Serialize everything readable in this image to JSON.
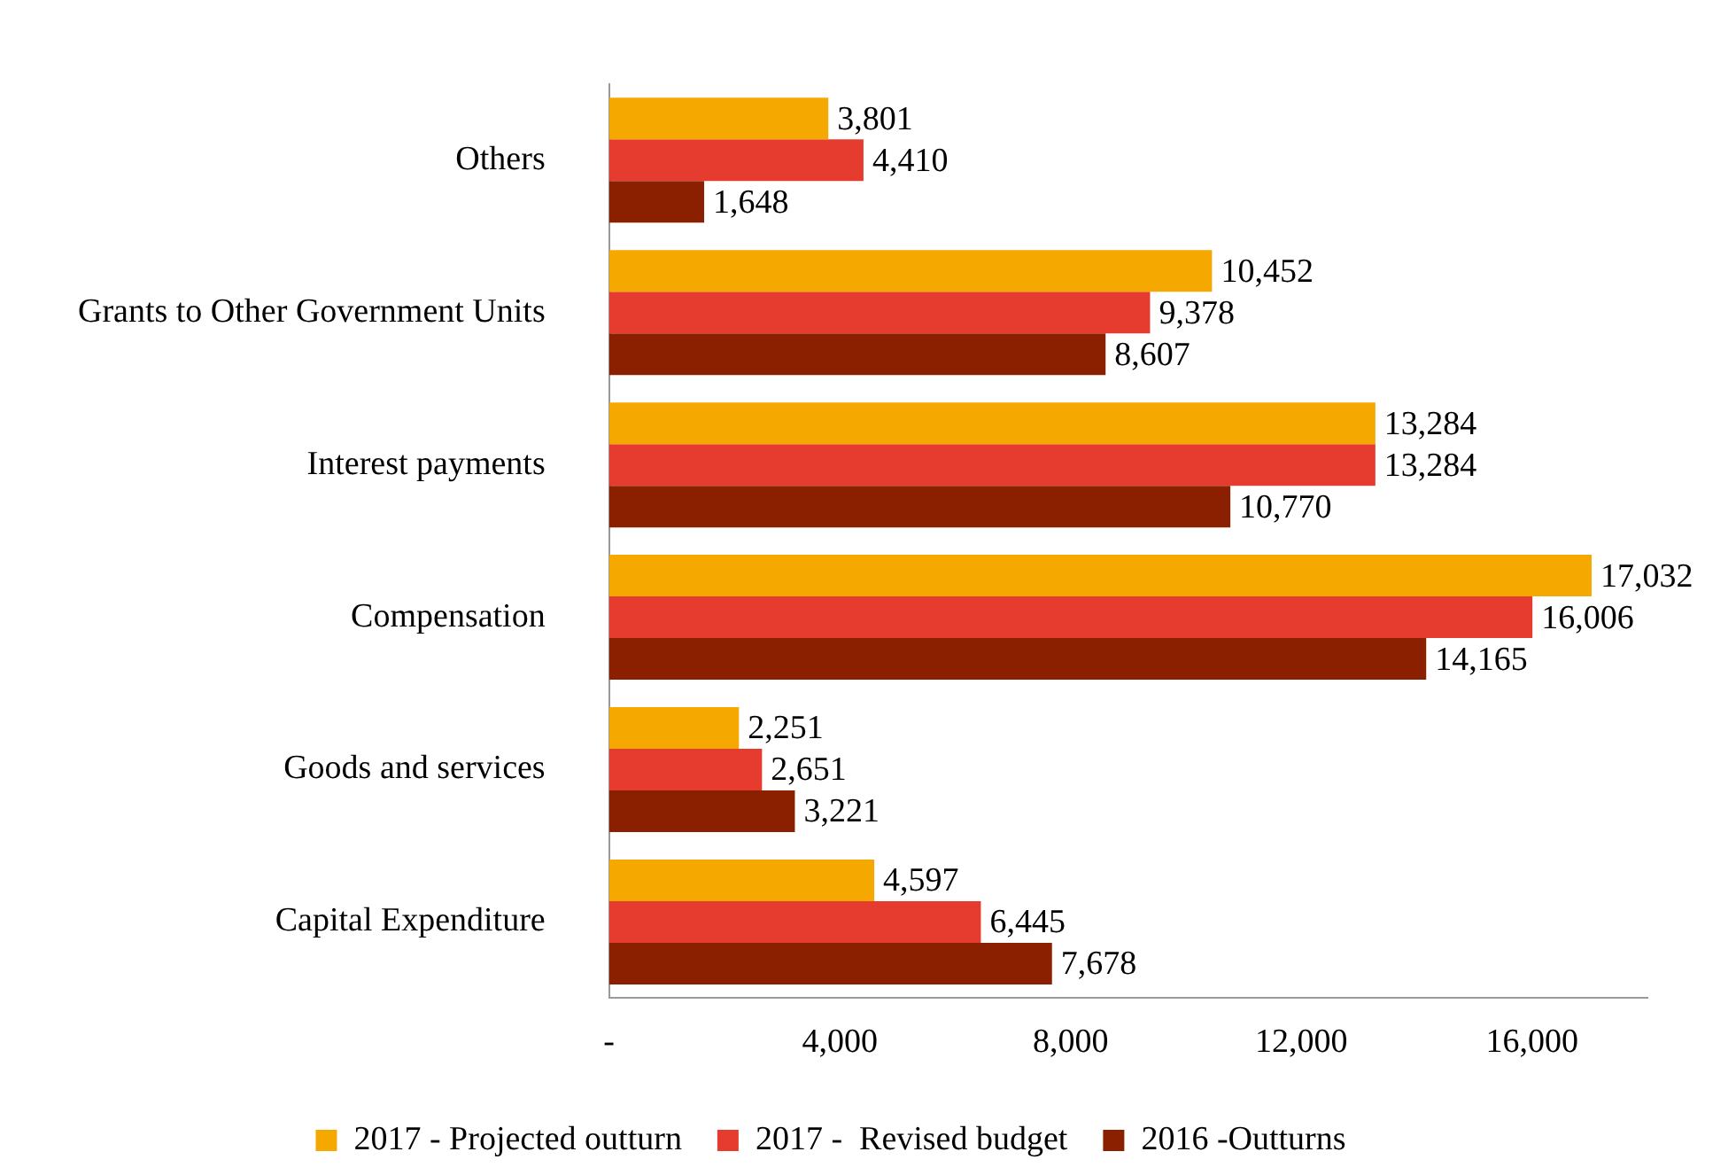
{
  "chart_data": {
    "type": "bar",
    "orientation": "horizontal",
    "categories": [
      "Others",
      "Grants to Other Government Units",
      "Interest payments",
      "Compensation",
      "Goods and services",
      "Capital Expenditure"
    ],
    "series": [
      {
        "name": "2017 - Projected outturn",
        "color": "#f5a800",
        "values": [
          3801,
          10452,
          13284,
          17032,
          2251,
          4597
        ],
        "value_labels": [
          "3,801",
          "10,452",
          "13,284",
          "17,032",
          "2,251",
          "4,597"
        ]
      },
      {
        "name": "2017 -  Revised budget",
        "color": "#e63c2f",
        "values": [
          4410,
          9378,
          13284,
          16006,
          2651,
          6445
        ],
        "value_labels": [
          "4,410",
          "9,378",
          "13,284",
          "16,006",
          "2,651",
          "6,445"
        ]
      },
      {
        "name": "2016 -Outturns",
        "color": "#8b2000",
        "values": [
          1648,
          8607,
          10770,
          14165,
          3221,
          7678
        ],
        "value_labels": [
          "1,648",
          "8,607",
          "10,770",
          "14,165",
          "3,221",
          "7,678"
        ]
      }
    ],
    "xlim": [
      0,
      18000
    ],
    "xticks": [
      {
        "value": 0,
        "label": "-"
      },
      {
        "value": 4000,
        "label": "4,000"
      },
      {
        "value": 8000,
        "label": "8,000"
      },
      {
        "value": 12000,
        "label": "12,000"
      },
      {
        "value": 16000,
        "label": "16,000"
      }
    ],
    "grid": false,
    "legend": "bottom"
  }
}
